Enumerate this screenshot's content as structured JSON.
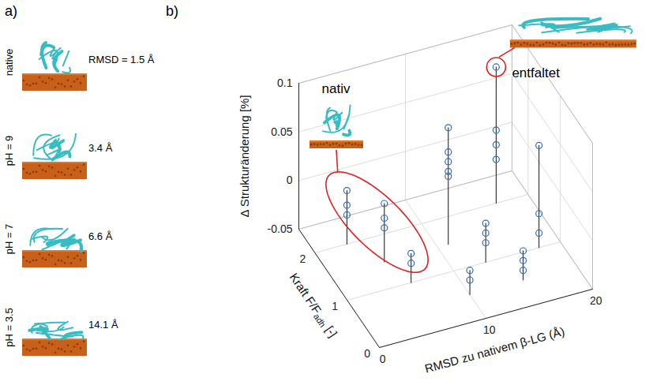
{
  "panel_a": {
    "label": "a)",
    "rows": [
      {
        "condition": "native",
        "rmsd_text": "RMSD = 1.5 Å"
      },
      {
        "condition": "pH = 9",
        "rmsd_text": "3.4 Å"
      },
      {
        "condition": "pH = 7",
        "rmsd_text": "6.6 Å"
      },
      {
        "condition": "pH = 3.5",
        "rmsd_text": "14.1 Å"
      }
    ]
  },
  "chart_data": {
    "type": "stem3d",
    "panel_label": "b)",
    "zlabel": "Δ Strukturänderung [%]",
    "xlabel": "RMSD zu nativem β-LG (Å)",
    "ylabel": {
      "text": "Kraft F/F",
      "sub": "adh",
      "after": " [-]"
    },
    "xlim": [
      0,
      20
    ],
    "xticks": [
      0,
      10,
      20
    ],
    "ylim": [
      0,
      2.5
    ],
    "yticks": [
      0,
      1,
      2
    ],
    "zlim": [
      -0.05,
      0.1
    ],
    "zticks": [
      -0.05,
      0,
      0.05,
      0.1
    ],
    "grid": true,
    "color": "#2f6db5",
    "marker": "circle",
    "annotations": [
      {
        "text": "nativ"
      },
      {
        "text": "entfaltet"
      }
    ],
    "stems": [
      {
        "x": 3,
        "y": 2,
        "values": [
          0.005,
          -0.01,
          -0.02
        ]
      },
      {
        "x": 5,
        "y": 1.5,
        "values": [
          0.01,
          -0.005,
          -0.015
        ]
      },
      {
        "x": 6,
        "y": 1,
        "values": [
          -0.02,
          -0.03
        ]
      },
      {
        "x": 11,
        "y": 1.5,
        "values": [
          0.07,
          0.045,
          0.035,
          0.025,
          0.02
        ]
      },
      {
        "x": 17,
        "y": 2,
        "values": [
          0.09,
          0.025,
          0.01,
          -0.005
        ]
      },
      {
        "x": 18,
        "y": 1,
        "values": [
          0.055,
          -0.015,
          -0.035
        ]
      },
      {
        "x": 10,
        "y": 0.5,
        "values": [
          -0.025,
          -0.035
        ]
      },
      {
        "x": 15,
        "y": 0.5,
        "values": [
          -0.02,
          -0.03,
          -0.04
        ]
      },
      {
        "x": 13,
        "y": 1,
        "values": [
          -0.01,
          -0.02,
          -0.03
        ]
      }
    ]
  }
}
